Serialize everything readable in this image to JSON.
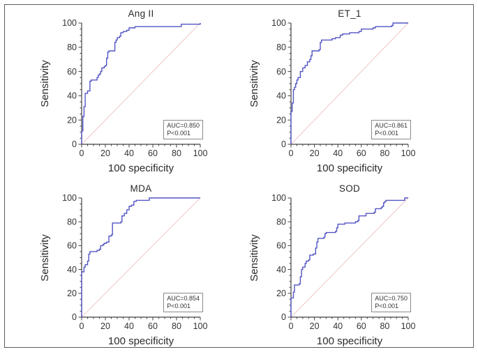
{
  "figure": {
    "background": "#ffffff",
    "frame_color": "#5a5a5a",
    "curve_color": "#5254c4",
    "diagonal_color": "#f0c8c8",
    "axis_color": "#404040",
    "text_color": "#333333",
    "annotation_border_color": "#8a8a8a"
  },
  "chart_data": [
    {
      "type": "line",
      "title": "Ang II",
      "xlabel": "100 specificity",
      "ylabel": "Sensitivity",
      "xlim": [
        0,
        100
      ],
      "ylim": [
        0,
        100
      ],
      "x_ticks": [
        0,
        20,
        40,
        60,
        80,
        100
      ],
      "y_ticks": [
        0,
        20,
        40,
        60,
        80,
        100
      ],
      "minor_tick_step": 5,
      "grid": false,
      "legend": "none",
      "diagonal_reference": true,
      "annotation": {
        "auc_label": "AUC=0.850",
        "p_label": "P<0.001"
      },
      "series": [
        {
          "name": "ROC curve",
          "points": [
            [
              0,
              0
            ],
            [
              0,
              11
            ],
            [
              1,
              11
            ],
            [
              1,
              23
            ],
            [
              2,
              23
            ],
            [
              2,
              31
            ],
            [
              3,
              31
            ],
            [
              3,
              42
            ],
            [
              5,
              42
            ],
            [
              5,
              44
            ],
            [
              7,
              44
            ],
            [
              7,
              52
            ],
            [
              8,
              52
            ],
            [
              8,
              53
            ],
            [
              13,
              53
            ],
            [
              13,
              55
            ],
            [
              14,
              55
            ],
            [
              14,
              57
            ],
            [
              15,
              57
            ],
            [
              15,
              58
            ],
            [
              16,
              58
            ],
            [
              16,
              60
            ],
            [
              17,
              60
            ],
            [
              17,
              63
            ],
            [
              19,
              63
            ],
            [
              19,
              64
            ],
            [
              20,
              64
            ],
            [
              20,
              65
            ],
            [
              21,
              65
            ],
            [
              21,
              71
            ],
            [
              22,
              71
            ],
            [
              22,
              76
            ],
            [
              23,
              76
            ],
            [
              23,
              77
            ],
            [
              28,
              77
            ],
            [
              28,
              84
            ],
            [
              29,
              84
            ],
            [
              29,
              86
            ],
            [
              30,
              86
            ],
            [
              30,
              88
            ],
            [
              32,
              88
            ],
            [
              32,
              89
            ],
            [
              33,
              89
            ],
            [
              33,
              92
            ],
            [
              35,
              92
            ],
            [
              35,
              93
            ],
            [
              38,
              93
            ],
            [
              38,
              94
            ],
            [
              40,
              94
            ],
            [
              40,
              96
            ],
            [
              45,
              96
            ],
            [
              45,
              97
            ],
            [
              84,
              97
            ],
            [
              84,
              99
            ],
            [
              100,
              99
            ],
            [
              100,
              100
            ]
          ]
        }
      ]
    },
    {
      "type": "line",
      "title": "ET_1",
      "xlabel": "100 specificity",
      "ylabel": "Sensitivity",
      "xlim": [
        0,
        100
      ],
      "ylim": [
        0,
        100
      ],
      "x_ticks": [
        0,
        20,
        40,
        60,
        80,
        100
      ],
      "y_ticks": [
        0,
        20,
        40,
        60,
        80,
        100
      ],
      "minor_tick_step": 5,
      "grid": false,
      "legend": "none",
      "diagonal_reference": true,
      "annotation": {
        "auc_label": "AUC=0.861",
        "p_label": "P<0.001"
      },
      "series": [
        {
          "name": "ROC curve",
          "points": [
            [
              0,
              0
            ],
            [
              0,
              27
            ],
            [
              1,
              27
            ],
            [
              1,
              34
            ],
            [
              2,
              34
            ],
            [
              2,
              45
            ],
            [
              3,
              45
            ],
            [
              3,
              47
            ],
            [
              4,
              47
            ],
            [
              4,
              50
            ],
            [
              5,
              50
            ],
            [
              5,
              53
            ],
            [
              6,
              53
            ],
            [
              6,
              55
            ],
            [
              8,
              55
            ],
            [
              8,
              60
            ],
            [
              10,
              60
            ],
            [
              10,
              63
            ],
            [
              12,
              63
            ],
            [
              12,
              65
            ],
            [
              14,
              65
            ],
            [
              14,
              68
            ],
            [
              16,
              68
            ],
            [
              16,
              70
            ],
            [
              17,
              70
            ],
            [
              17,
              73
            ],
            [
              18,
              73
            ],
            [
              18,
              77
            ],
            [
              24,
              77
            ],
            [
              24,
              78
            ],
            [
              25,
              78
            ],
            [
              25,
              84
            ],
            [
              26,
              84
            ],
            [
              26,
              86
            ],
            [
              35,
              86
            ],
            [
              35,
              87
            ],
            [
              38,
              87
            ],
            [
              38,
              88
            ],
            [
              42,
              88
            ],
            [
              42,
              90
            ],
            [
              44,
              90
            ],
            [
              44,
              91
            ],
            [
              50,
              91
            ],
            [
              50,
              92
            ],
            [
              58,
              92
            ],
            [
              58,
              93
            ],
            [
              60,
              93
            ],
            [
              60,
              95
            ],
            [
              70,
              95
            ],
            [
              70,
              96
            ],
            [
              72,
              96
            ],
            [
              72,
              97
            ],
            [
              86,
              97
            ],
            [
              86,
              98
            ],
            [
              87,
              98
            ],
            [
              87,
              100
            ],
            [
              100,
              100
            ]
          ]
        }
      ]
    },
    {
      "type": "line",
      "title": "MDA",
      "xlabel": "100 specificity",
      "ylabel": "Sensitivity",
      "xlim": [
        0,
        100
      ],
      "ylim": [
        0,
        100
      ],
      "x_ticks": [
        0,
        20,
        40,
        60,
        80,
        100
      ],
      "y_ticks": [
        0,
        20,
        40,
        60,
        80,
        100
      ],
      "minor_tick_step": 5,
      "grid": false,
      "legend": "none",
      "diagonal_reference": true,
      "annotation": {
        "auc_label": "AUC=0.854",
        "p_label": "P<0.001"
      },
      "series": [
        {
          "name": "ROC curve",
          "points": [
            [
              0,
              0
            ],
            [
              0,
              38
            ],
            [
              2,
              38
            ],
            [
              2,
              42
            ],
            [
              3,
              42
            ],
            [
              3,
              44
            ],
            [
              5,
              44
            ],
            [
              5,
              47
            ],
            [
              6,
              47
            ],
            [
              6,
              53
            ],
            [
              7,
              53
            ],
            [
              7,
              55
            ],
            [
              13,
              55
            ],
            [
              13,
              56
            ],
            [
              15,
              56
            ],
            [
              15,
              57
            ],
            [
              16,
              57
            ],
            [
              16,
              60
            ],
            [
              18,
              60
            ],
            [
              18,
              61
            ],
            [
              19,
              61
            ],
            [
              19,
              62
            ],
            [
              21,
              62
            ],
            [
              21,
              63
            ],
            [
              23,
              63
            ],
            [
              23,
              68
            ],
            [
              25,
              68
            ],
            [
              25,
              69
            ],
            [
              26,
              69
            ],
            [
              26,
              79
            ],
            [
              33,
              79
            ],
            [
              33,
              80
            ],
            [
              34,
              80
            ],
            [
              34,
              85
            ],
            [
              36,
              85
            ],
            [
              36,
              87
            ],
            [
              38,
              87
            ],
            [
              38,
              90
            ],
            [
              40,
              90
            ],
            [
              40,
              93
            ],
            [
              42,
              93
            ],
            [
              42,
              94
            ],
            [
              44,
              94
            ],
            [
              44,
              97
            ],
            [
              46,
              97
            ],
            [
              46,
              98
            ],
            [
              57,
              98
            ],
            [
              57,
              100
            ],
            [
              100,
              100
            ]
          ]
        }
      ]
    },
    {
      "type": "line",
      "title": "SOD",
      "xlabel": "100 specificity",
      "ylabel": "Sensitivity",
      "xlim": [
        0,
        100
      ],
      "ylim": [
        0,
        100
      ],
      "x_ticks": [
        0,
        20,
        40,
        60,
        80,
        100
      ],
      "y_ticks": [
        0,
        20,
        40,
        60,
        80,
        100
      ],
      "minor_tick_step": 5,
      "grid": false,
      "legend": "none",
      "diagonal_reference": true,
      "annotation": {
        "auc_label": "AUC=0.750",
        "p_label": "P<0.001"
      },
      "series": [
        {
          "name": "ROC curve",
          "points": [
            [
              0,
              0
            ],
            [
              0,
              16
            ],
            [
              2,
              16
            ],
            [
              2,
              21
            ],
            [
              3,
              21
            ],
            [
              3,
              27
            ],
            [
              7,
              27
            ],
            [
              7,
              28
            ],
            [
              8,
              28
            ],
            [
              8,
              34
            ],
            [
              9,
              34
            ],
            [
              9,
              40
            ],
            [
              10,
              40
            ],
            [
              10,
              42
            ],
            [
              12,
              42
            ],
            [
              12,
              45
            ],
            [
              13,
              45
            ],
            [
              13,
              47
            ],
            [
              15,
              47
            ],
            [
              15,
              48
            ],
            [
              16,
              48
            ],
            [
              16,
              52
            ],
            [
              19,
              52
            ],
            [
              19,
              53
            ],
            [
              21,
              53
            ],
            [
              21,
              58
            ],
            [
              22,
              58
            ],
            [
              22,
              63
            ],
            [
              23,
              63
            ],
            [
              23,
              66
            ],
            [
              28,
              66
            ],
            [
              28,
              67
            ],
            [
              29,
              67
            ],
            [
              29,
              70
            ],
            [
              30,
              70
            ],
            [
              30,
              71
            ],
            [
              38,
              71
            ],
            [
              38,
              72
            ],
            [
              39,
              72
            ],
            [
              39,
              75
            ],
            [
              40,
              75
            ],
            [
              40,
              78
            ],
            [
              46,
              78
            ],
            [
              46,
              79
            ],
            [
              55,
              79
            ],
            [
              55,
              80
            ],
            [
              57,
              80
            ],
            [
              57,
              81
            ],
            [
              58,
              81
            ],
            [
              58,
              85
            ],
            [
              64,
              85
            ],
            [
              64,
              87
            ],
            [
              71,
              87
            ],
            [
              71,
              88
            ],
            [
              72,
              88
            ],
            [
              72,
              91
            ],
            [
              77,
              91
            ],
            [
              77,
              92
            ],
            [
              78,
              92
            ],
            [
              78,
              93
            ],
            [
              79,
              93
            ],
            [
              79,
              96
            ],
            [
              80,
              96
            ],
            [
              80,
              97
            ],
            [
              81,
              97
            ],
            [
              81,
              98
            ],
            [
              97,
              98
            ],
            [
              97,
              100
            ],
            [
              100,
              100
            ]
          ]
        }
      ]
    }
  ]
}
